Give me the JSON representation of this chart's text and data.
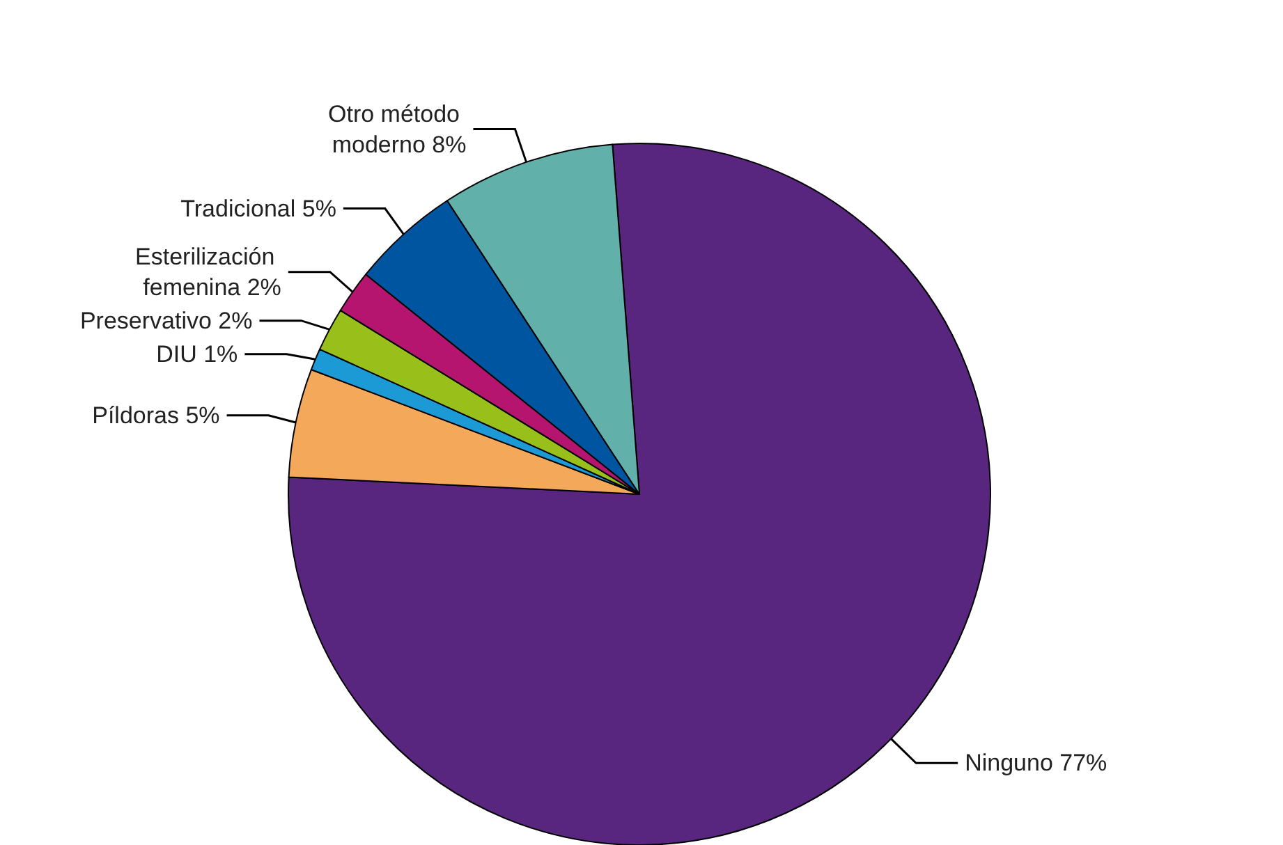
{
  "chart_data": {
    "type": "pie",
    "categories": [
      "Ninguno",
      "Píldoras",
      "DIU",
      "Preservativo",
      "Esterilización femenina",
      "Tradicional",
      "Otro método moderno"
    ],
    "values": [
      77,
      5,
      1,
      2,
      2,
      5,
      8
    ],
    "value_labels": [
      "77%",
      "5%",
      "1%",
      "2%",
      "2%",
      "5%",
      "8%"
    ],
    "colors": [
      "#58267e",
      "#f3a85a",
      "#1b9ad6",
      "#99bf1a",
      "#b5146f",
      "#0055a0",
      "#62b0aa"
    ]
  }
}
